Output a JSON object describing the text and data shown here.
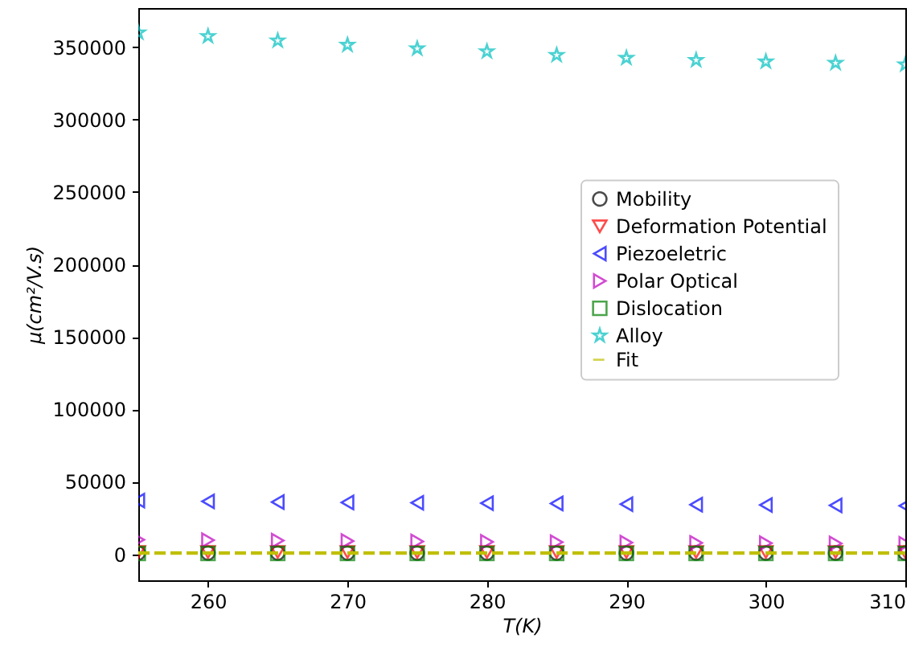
{
  "chart_data": {
    "type": "scatter",
    "xlabel": "T(K)",
    "ylabel": "μ(cm²/V.s)",
    "x": [
      255,
      260,
      265,
      270,
      275,
      280,
      285,
      290,
      295,
      300,
      305,
      310
    ],
    "series": [
      {
        "name": "Mobility",
        "color": "#000000",
        "marker": "circle",
        "values": [
          800,
          800,
          800,
          800,
          800,
          800,
          800,
          800,
          800,
          800,
          800,
          800
        ]
      },
      {
        "name": "Deformation Potential",
        "color": "#ff0000",
        "marker": "triangle-down",
        "values": [
          1500,
          1500,
          1500,
          1500,
          1500,
          1500,
          1500,
          1500,
          1500,
          1500,
          1500,
          1500
        ]
      },
      {
        "name": "Piezoeletric",
        "color": "#0000ff",
        "marker": "triangle-left",
        "values": [
          37000,
          36500,
          36000,
          35700,
          35500,
          35200,
          35000,
          34500,
          34200,
          34000,
          33700,
          33400
        ]
      },
      {
        "name": "Polar Optical",
        "color": "#bf00bf",
        "marker": "triangle-right",
        "values": [
          10000,
          9700,
          9400,
          9100,
          8800,
          8500,
          8300,
          8000,
          7800,
          7600,
          7400,
          7200
        ]
      },
      {
        "name": "Dislocation",
        "color": "#008000",
        "marker": "square",
        "values": [
          500,
          500,
          500,
          500,
          500,
          500,
          500,
          500,
          500,
          500,
          500,
          500
        ]
      },
      {
        "name": "Alloy",
        "color": "#00bfbf",
        "marker": "star",
        "values": [
          360000,
          357500,
          354500,
          351500,
          349000,
          347000,
          344500,
          342500,
          341000,
          340000,
          339000,
          338000
        ]
      },
      {
        "name": "Fit",
        "type": "line",
        "line_style": "dashed",
        "color": "#bfbf00",
        "values": [
          800,
          800,
          800,
          800,
          800,
          800,
          800,
          800,
          800,
          800,
          800,
          800
        ]
      }
    ],
    "xlim": [
      255,
      310
    ],
    "xticks": [
      260,
      270,
      280,
      290,
      300,
      310
    ],
    "ylim": [
      -18000,
      377000
    ],
    "yticks": [
      0,
      50000,
      100000,
      150000,
      200000,
      250000,
      300000,
      350000
    ],
    "grid": false,
    "legend": "right"
  }
}
